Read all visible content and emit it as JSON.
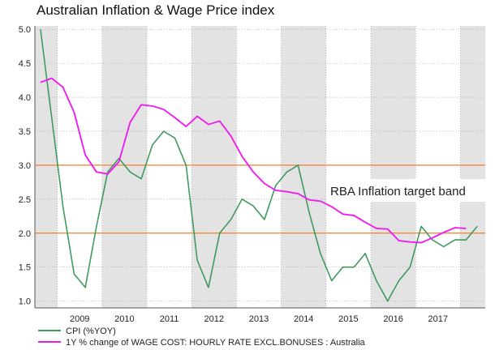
{
  "chart_data": {
    "type": "line",
    "title": "Australian Inflation & Wage Price index",
    "x_tick_labels": [
      "2009",
      "2010",
      "2011",
      "2012",
      "2013",
      "2014",
      "2015",
      "2016",
      "2017"
    ],
    "y_ticks": [
      "1.0",
      "1.5",
      "2.0",
      "2.5",
      "3.0",
      "3.5",
      "4.0",
      "4.5",
      "5.0"
    ],
    "ylim": [
      0.9,
      5.05
    ],
    "grid": "dotted horizontal and vertical",
    "background": "alternating grey shaded year bands",
    "reference_lines": [
      {
        "value": 3.0,
        "color": "#f07f2e"
      },
      {
        "value": 2.0,
        "color": "#f07f2e"
      }
    ],
    "annotation": "RBA Inflation target band",
    "legend_position": "bottom",
    "series": [
      {
        "name": "CPI (%YOY)",
        "color": "#3f9a5e",
        "values": [
          [
            "2008Q3",
            5.0
          ],
          [
            "2008Q4",
            3.7
          ],
          [
            "2009Q1",
            2.4
          ],
          [
            "2009Q2",
            1.4
          ],
          [
            "2009Q3",
            1.2
          ],
          [
            "2009Q4",
            2.1
          ],
          [
            "2010Q1",
            2.9
          ],
          [
            "2010Q2",
            3.1
          ],
          [
            "2010Q3",
            2.9
          ],
          [
            "2010Q4",
            2.8
          ],
          [
            "2011Q1",
            3.3
          ],
          [
            "2011Q2",
            3.5
          ],
          [
            "2011Q3",
            3.4
          ],
          [
            "2011Q4",
            3.0
          ],
          [
            "2012Q1",
            1.6
          ],
          [
            "2012Q2",
            1.2
          ],
          [
            "2012Q3",
            2.0
          ],
          [
            "2012Q4",
            2.2
          ],
          [
            "2013Q1",
            2.5
          ],
          [
            "2013Q2",
            2.4
          ],
          [
            "2013Q3",
            2.2
          ],
          [
            "2013Q4",
            2.7
          ],
          [
            "2014Q1",
            2.9
          ],
          [
            "2014Q2",
            3.0
          ],
          [
            "2014Q3",
            2.3
          ],
          [
            "2014Q4",
            1.7
          ],
          [
            "2015Q1",
            1.3
          ],
          [
            "2015Q2",
            1.5
          ],
          [
            "2015Q3",
            1.5
          ],
          [
            "2015Q4",
            1.7
          ],
          [
            "2016Q1",
            1.3
          ],
          [
            "2016Q2",
            1.0
          ],
          [
            "2016Q3",
            1.3
          ],
          [
            "2016Q4",
            1.5
          ],
          [
            "2017Q1",
            2.1
          ],
          [
            "2017Q2",
            1.9
          ],
          [
            "2017Q3",
            1.8
          ],
          [
            "2017Q4",
            1.9
          ],
          [
            "2018Q1",
            1.9
          ],
          [
            "2018Q2",
            2.1
          ]
        ]
      },
      {
        "name": "1Y % change of WAGE COST: HOURLY RATE EXCL.BONUSES : Australia",
        "color": "#ee1fee",
        "values": [
          [
            "2008Q3",
            4.22
          ],
          [
            "2008Q4",
            4.28
          ],
          [
            "2009Q1",
            4.15
          ],
          [
            "2009Q2",
            3.78
          ],
          [
            "2009Q3",
            3.15
          ],
          [
            "2009Q4",
            2.9
          ],
          [
            "2010Q1",
            2.87
          ],
          [
            "2010Q2",
            3.05
          ],
          [
            "2010Q3",
            3.63
          ],
          [
            "2010Q4",
            3.89
          ],
          [
            "2011Q1",
            3.87
          ],
          [
            "2011Q2",
            3.82
          ],
          [
            "2011Q3",
            3.7
          ],
          [
            "2011Q4",
            3.57
          ],
          [
            "2012Q1",
            3.72
          ],
          [
            "2012Q2",
            3.6
          ],
          [
            "2012Q3",
            3.65
          ],
          [
            "2012Q4",
            3.43
          ],
          [
            "2013Q1",
            3.13
          ],
          [
            "2013Q2",
            2.9
          ],
          [
            "2013Q3",
            2.73
          ],
          [
            "2013Q4",
            2.63
          ],
          [
            "2014Q1",
            2.61
          ],
          [
            "2014Q2",
            2.58
          ],
          [
            "2014Q3",
            2.49
          ],
          [
            "2014Q4",
            2.47
          ],
          [
            "2015Q1",
            2.39
          ],
          [
            "2015Q2",
            2.28
          ],
          [
            "2015Q3",
            2.26
          ],
          [
            "2015Q4",
            2.16
          ],
          [
            "2016Q1",
            2.07
          ],
          [
            "2016Q2",
            2.06
          ],
          [
            "2016Q3",
            1.89
          ],
          [
            "2016Q4",
            1.87
          ],
          [
            "2017Q1",
            1.86
          ],
          [
            "2017Q2",
            1.93
          ],
          [
            "2017Q3",
            2.01
          ],
          [
            "2017Q4",
            2.08
          ],
          [
            "2018Q1",
            2.07
          ]
        ]
      }
    ]
  }
}
